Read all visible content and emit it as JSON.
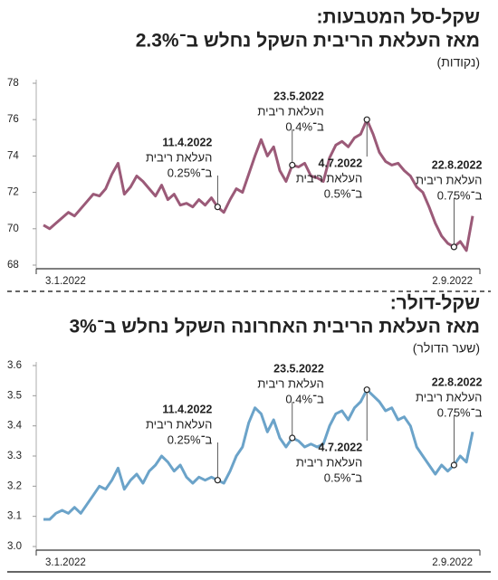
{
  "chart_data": [
    {
      "type": "line",
      "title": "שקל-סל המטבעות:",
      "subtitle": "מאז העלאת הריבית השקל נחלש ב־2.3%",
      "y_label": "(נקודות)",
      "color": "#9b5a78",
      "categories": [
        "3.1.2022",
        null,
        null,
        null,
        null,
        null,
        null,
        null,
        null,
        null,
        null,
        null,
        null,
        null,
        null,
        null,
        null,
        null,
        null,
        null,
        null,
        null,
        null,
        null,
        null,
        null,
        null,
        null,
        null,
        null,
        null,
        null,
        null,
        null,
        null,
        null,
        null,
        null,
        null,
        null,
        null,
        null,
        null,
        null,
        null,
        null,
        null,
        null,
        null,
        null,
        null,
        null,
        null,
        null,
        null,
        null,
        null,
        null,
        null,
        null,
        null,
        null,
        null,
        null,
        null,
        null,
        null,
        null,
        null,
        "2.9.2022"
      ],
      "values": [
        70.2,
        70.0,
        70.3,
        70.6,
        70.9,
        70.7,
        71.1,
        71.5,
        71.9,
        71.8,
        72.2,
        73.0,
        73.6,
        71.9,
        72.3,
        72.9,
        72.6,
        72.2,
        71.8,
        72.4,
        71.6,
        71.9,
        71.3,
        71.4,
        71.2,
        71.6,
        71.3,
        71.7,
        71.2,
        70.9,
        71.6,
        72.2,
        72.0,
        73.0,
        74.0,
        74.9,
        74.0,
        74.5,
        73.2,
        72.6,
        73.5,
        73.4,
        73.6,
        72.9,
        72.8,
        72.6,
        73.9,
        74.6,
        74.8,
        74.5,
        75.0,
        75.2,
        76.0,
        75.2,
        74.2,
        73.7,
        73.5,
        73.6,
        73.2,
        72.9,
        72.3,
        72.0,
        71.2,
        70.3,
        69.6,
        69.2,
        69.0,
        69.3,
        68.8,
        70.7
      ],
      "ylim": [
        68,
        78
      ],
      "yticks": [
        68,
        70,
        72,
        74,
        76,
        78
      ],
      "grid": false,
      "annotations": [
        {
          "date": "11.4.2022",
          "lines": [
            "העלאת ריבית",
            "ב־0.25%"
          ]
        },
        {
          "date": "23.5.2022",
          "lines": [
            "העלאת ריבית",
            "ב־0.4%"
          ]
        },
        {
          "date": "4.7.2022",
          "lines": [
            "העלאת ריבית",
            "ב־0.5%"
          ]
        },
        {
          "date": "22.8.2022",
          "lines": [
            "העלאת ריבית",
            "ב־0.75%"
          ]
        }
      ]
    },
    {
      "type": "line",
      "title": "שקל-דולר:",
      "subtitle": "מאז העלאת הריבית האחרונה השקל נחלש ב־3%",
      "y_label": "(שער הדולר)",
      "color": "#6ba3c9",
      "categories": [
        "3.1.2022",
        null,
        null,
        null,
        null,
        null,
        null,
        null,
        null,
        null,
        null,
        null,
        null,
        null,
        null,
        null,
        null,
        null,
        null,
        null,
        null,
        null,
        null,
        null,
        null,
        null,
        null,
        null,
        null,
        null,
        null,
        null,
        null,
        null,
        null,
        null,
        null,
        null,
        null,
        null,
        null,
        null,
        null,
        null,
        null,
        null,
        null,
        null,
        null,
        null,
        null,
        null,
        null,
        null,
        null,
        null,
        null,
        null,
        null,
        null,
        null,
        null,
        null,
        null,
        null,
        null,
        null,
        null,
        null,
        "2.9.2022"
      ],
      "values": [
        3.09,
        3.09,
        3.11,
        3.12,
        3.11,
        3.13,
        3.11,
        3.14,
        3.17,
        3.2,
        3.19,
        3.22,
        3.26,
        3.19,
        3.22,
        3.24,
        3.21,
        3.25,
        3.27,
        3.3,
        3.28,
        3.25,
        3.27,
        3.23,
        3.21,
        3.23,
        3.22,
        3.23,
        3.22,
        3.21,
        3.25,
        3.3,
        3.33,
        3.41,
        3.46,
        3.44,
        3.38,
        3.42,
        3.36,
        3.33,
        3.36,
        3.35,
        3.33,
        3.34,
        3.33,
        3.34,
        3.4,
        3.44,
        3.45,
        3.42,
        3.46,
        3.48,
        3.52,
        3.5,
        3.48,
        3.45,
        3.46,
        3.42,
        3.43,
        3.4,
        3.33,
        3.3,
        3.27,
        3.24,
        3.27,
        3.25,
        3.27,
        3.3,
        3.28,
        3.38
      ],
      "ylim": [
        3,
        3.6
      ],
      "yticks": [
        {
          "value": 3,
          "label": "3.0"
        },
        3.1,
        3.2,
        3.3,
        3.4,
        3.5,
        3.6
      ],
      "grid": false,
      "annotations": [
        {
          "date": "11.4.2022",
          "lines": [
            "העלאת ריבית",
            "ב־0.25%"
          ]
        },
        {
          "date": "23.5.2022",
          "lines": [
            "העלאת ריבית",
            "ב־0.4%"
          ]
        },
        {
          "date": "4.7.2022",
          "lines": [
            "העלאת ריבית",
            "ב־0.5%"
          ]
        },
        {
          "date": "22.8.2022",
          "lines": [
            "העלאת ריבית",
            "ב־0.75%"
          ]
        }
      ]
    }
  ]
}
